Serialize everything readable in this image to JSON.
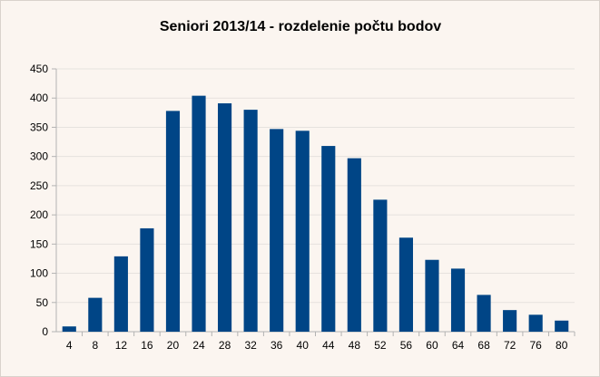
{
  "chart_data": {
    "type": "bar",
    "title": "Seniori 2013/14 - rozdelenie počtu bodov",
    "xlabel": "",
    "ylabel": "",
    "categories": [
      "4",
      "8",
      "12",
      "16",
      "20",
      "24",
      "28",
      "32",
      "36",
      "40",
      "44",
      "48",
      "52",
      "56",
      "60",
      "64",
      "68",
      "72",
      "76",
      "80"
    ],
    "values": [
      9,
      58,
      129,
      177,
      378,
      404,
      391,
      380,
      347,
      344,
      318,
      297,
      226,
      161,
      123,
      108,
      63,
      37,
      29,
      19
    ],
    "ylim": [
      0,
      450
    ],
    "yticks": [
      0,
      50,
      100,
      150,
      200,
      250,
      300,
      350,
      400,
      450
    ],
    "grid": true,
    "legend": "none",
    "bar_color": "#004586",
    "grid_color": "#e6e2de",
    "background": "#fbf5f0"
  }
}
